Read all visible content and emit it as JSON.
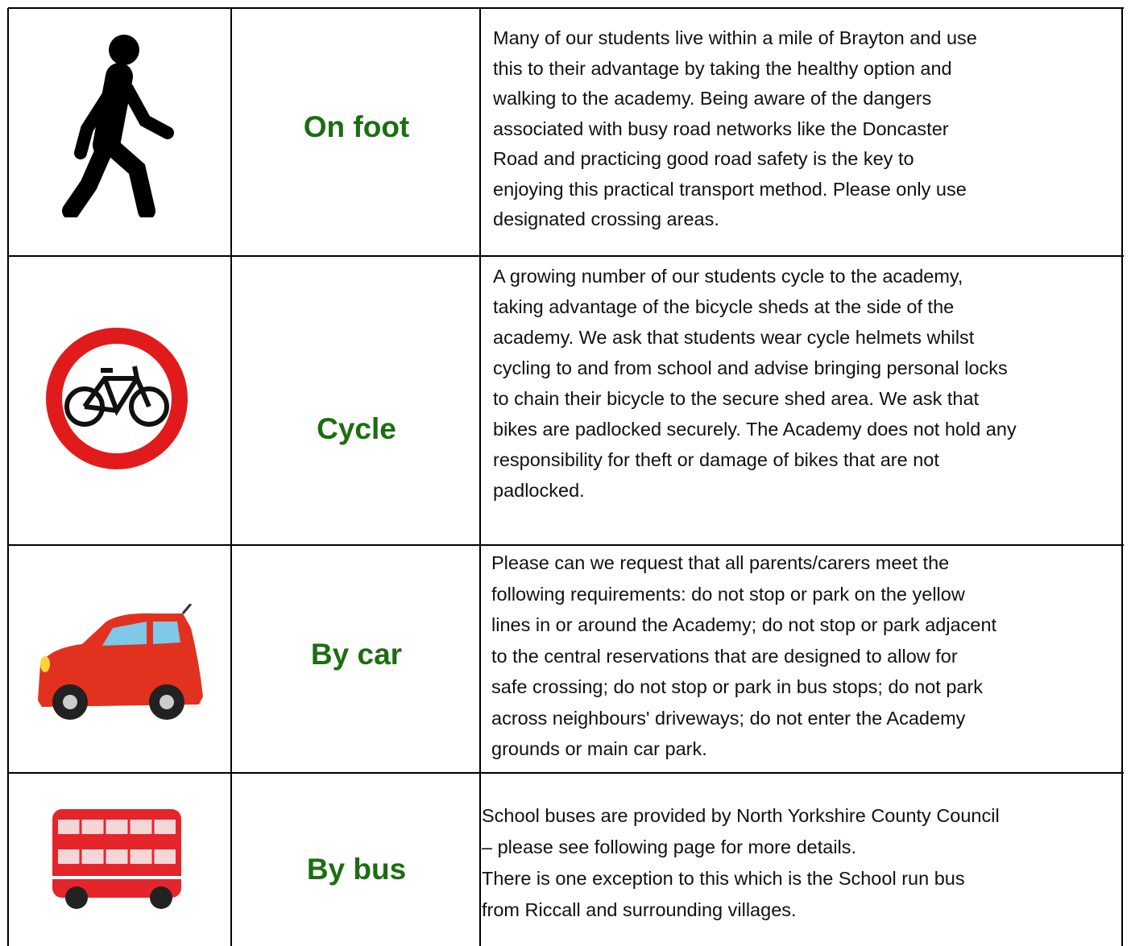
{
  "table": {
    "rows": [
      {
        "label": "On foot",
        "text": [
          "Many of our students live within a mile of Brayton and use",
          "this to their advantage by taking the healthy option and",
          "walking to the academy. Being aware of the dangers",
          "associated with busy road networks like the Doncaster",
          "Road and practicing good road safety is the key to",
          "enjoying this practical transport method. Please only use",
          "designated crossing areas."
        ]
      },
      {
        "label": "Cycle",
        "text": [
          "A growing number of our students cycle to the academy,",
          "taking advantage of the bicycle sheds at the side of the",
          "academy. We ask that students wear cycle helmets whilst",
          "cycling to and from school and advise bringing personal locks",
          "to chain their   bicycle to the secure shed area. We ask that",
          "bikes are padlocked securely. The Academy does not hold any",
          "responsibility for theft or damage of bikes that are not",
          "padlocked."
        ]
      },
      {
        "label": "By car",
        "text": [
          "Please can we request that all parents/carers meet the",
          "following requirements: do not stop or park on the yellow",
          "lines in or around the Academy; do not stop or park adjacent",
          "to the central reservations that are designed to allow for",
          "safe crossing; do not stop or park in bus stops; do not park",
          "across neighbours' driveways; do not enter the Academy",
          "grounds or main car park."
        ]
      },
      {
        "label": "By bus",
        "text": [
          "School buses are provided by North Yorkshire County  Council",
          "– please see following page for more details.",
          "There is one exception to this which is the School run bus",
          "from Riccall and surrounding villages."
        ]
      }
    ]
  }
}
